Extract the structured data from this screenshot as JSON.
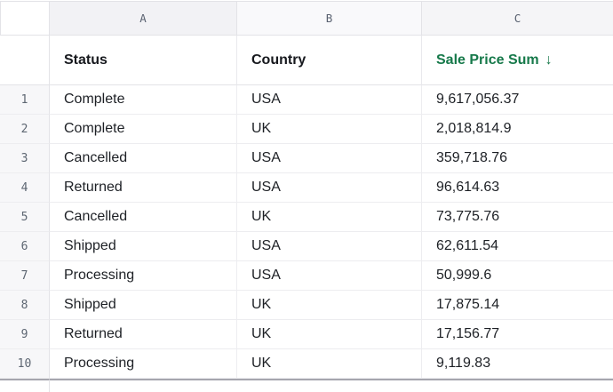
{
  "sheet": {
    "column_letters": [
      "A",
      "B",
      "C"
    ],
    "header": {
      "status": "Status",
      "country": "Country",
      "sale_price_sum": "Sale Price Sum",
      "sort_arrow": "↓",
      "sorted_column": "Sale Price Sum",
      "sort_direction": "descending"
    },
    "rows": [
      {
        "n": "1",
        "status": "Complete",
        "country": "USA",
        "sale_price_sum": "9,617,056.37"
      },
      {
        "n": "2",
        "status": "Complete",
        "country": "UK",
        "sale_price_sum": "2,018,814.9"
      },
      {
        "n": "3",
        "status": "Cancelled",
        "country": "USA",
        "sale_price_sum": "359,718.76"
      },
      {
        "n": "4",
        "status": "Returned",
        "country": "USA",
        "sale_price_sum": "96,614.63"
      },
      {
        "n": "5",
        "status": "Cancelled",
        "country": "UK",
        "sale_price_sum": "73,775.76"
      },
      {
        "n": "6",
        "status": "Shipped",
        "country": "USA",
        "sale_price_sum": "62,611.54"
      },
      {
        "n": "7",
        "status": "Processing",
        "country": "USA",
        "sale_price_sum": "50,999.6"
      },
      {
        "n": "8",
        "status": "Shipped",
        "country": "UK",
        "sale_price_sum": "17,875.14"
      },
      {
        "n": "9",
        "status": "Returned",
        "country": "UK",
        "sale_price_sum": "17,156.77"
      },
      {
        "n": "10",
        "status": "Processing",
        "country": "UK",
        "sale_price_sum": "9,119.83"
      }
    ]
  },
  "colors": {
    "accent_green": "#16794a",
    "border_dark": "#a6a6ae"
  }
}
